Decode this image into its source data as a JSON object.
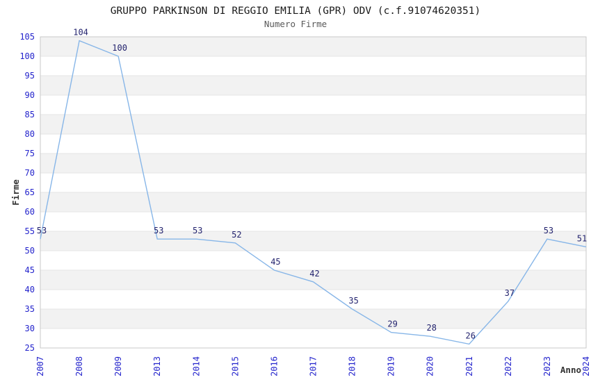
{
  "page": {
    "background": "#ffffff"
  },
  "chart_data": {
    "type": "line",
    "title": "GRUPPO PARKINSON DI REGGIO EMILIA (GPR) ODV (c.f.91074620351)",
    "subtitle": "Numero Firme",
    "xlabel": "Anno",
    "ylabel": "Firme",
    "categories": [
      "2007",
      "2008",
      "2009",
      "2013",
      "2014",
      "2015",
      "2016",
      "2017",
      "2018",
      "2019",
      "2020",
      "2021",
      "2022",
      "2023",
      "2024"
    ],
    "values": [
      53,
      104,
      100,
      53,
      53,
      52,
      45,
      42,
      35,
      29,
      28,
      26,
      37,
      53,
      51
    ],
    "point_labels": [
      "53",
      "104",
      "100",
      "53",
      "53",
      "52",
      "45",
      "42",
      "35",
      "29",
      "28",
      "26",
      "37",
      "53",
      "51"
    ],
    "ylim": [
      25,
      105
    ],
    "ytick_step": 5,
    "ytick_labels": [
      "25",
      "30",
      "35",
      "40",
      "45",
      "50",
      "55",
      "60",
      "65",
      "70",
      "75",
      "80",
      "85",
      "90",
      "95",
      "100",
      "105"
    ],
    "grid": true,
    "banded_background": true,
    "legend": "none",
    "x_labels_rotated": true,
    "colors": {
      "line": "#87b6e8",
      "point_label": "#23236e",
      "tick_label": "#2323cc",
      "axis_title": "#333333",
      "title": "#1a1a1a",
      "subtitle": "#595959",
      "band": "#f2f2f2",
      "grid_line": "#e4e4e4",
      "plot_border": "#c9c9c9",
      "background": "#ffffff"
    }
  }
}
